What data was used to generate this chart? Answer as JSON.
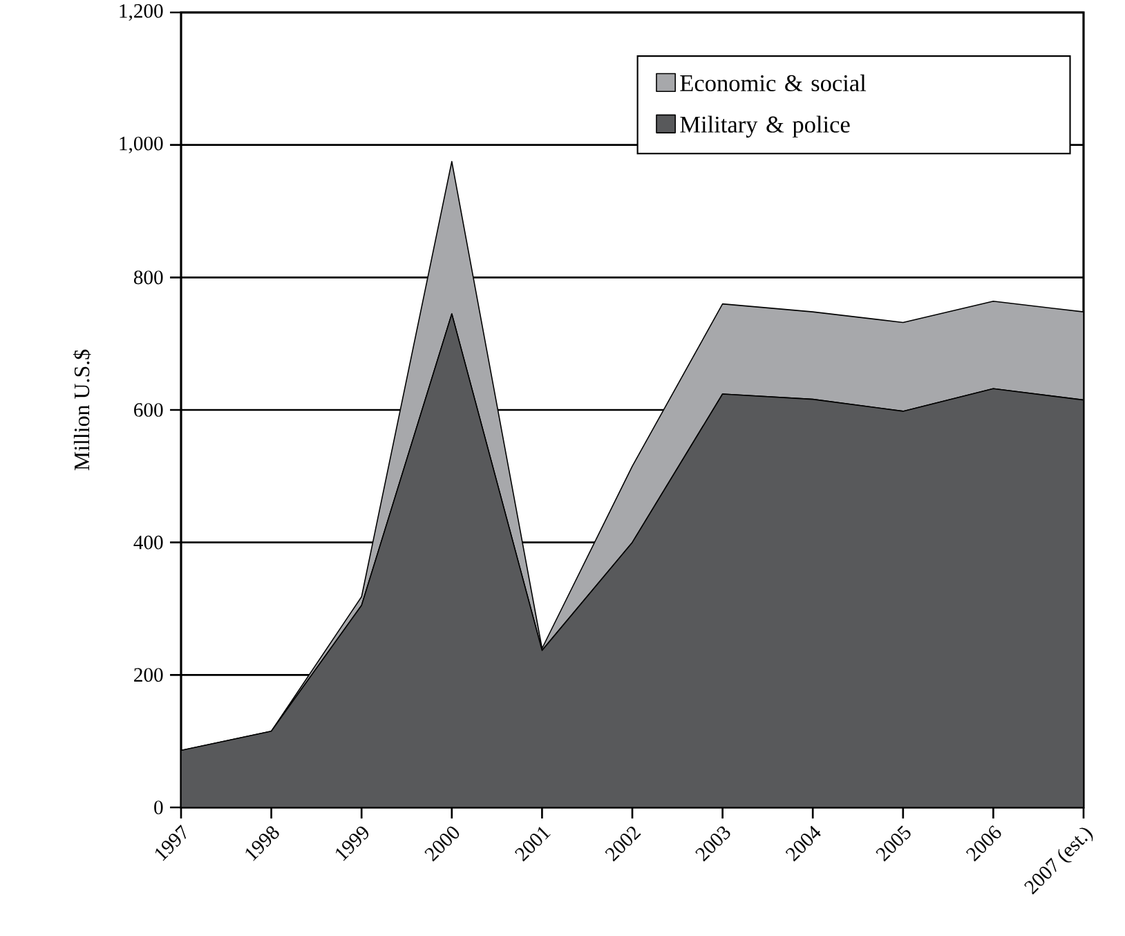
{
  "chart_data": {
    "type": "area",
    "stacked": true,
    "ylabel": "Million U.S.$",
    "categories": [
      "1997",
      "1998",
      "1999",
      "2000",
      "2001",
      "2002",
      "2003",
      "2004",
      "2005",
      "2006",
      "2007 (est.)"
    ],
    "series": [
      {
        "name": "Military & police",
        "color": "#58595b",
        "values": [
          86,
          115,
          305,
          745,
          237,
          400,
          624,
          616,
          598,
          632,
          615
        ]
      },
      {
        "name": "Economic & social",
        "color": "#a7a8ab",
        "values": [
          0,
          0,
          13,
          230,
          3,
          115,
          136,
          132,
          134,
          132,
          133
        ]
      }
    ],
    "ylim": [
      0,
      1200
    ],
    "yticks": [
      0,
      200,
      400,
      600,
      800,
      {
        "value": 1000,
        "label": "1,000"
      },
      {
        "value": 1200,
        "label": "1,200"
      }
    ],
    "grid": "y",
    "legend": "top right"
  }
}
